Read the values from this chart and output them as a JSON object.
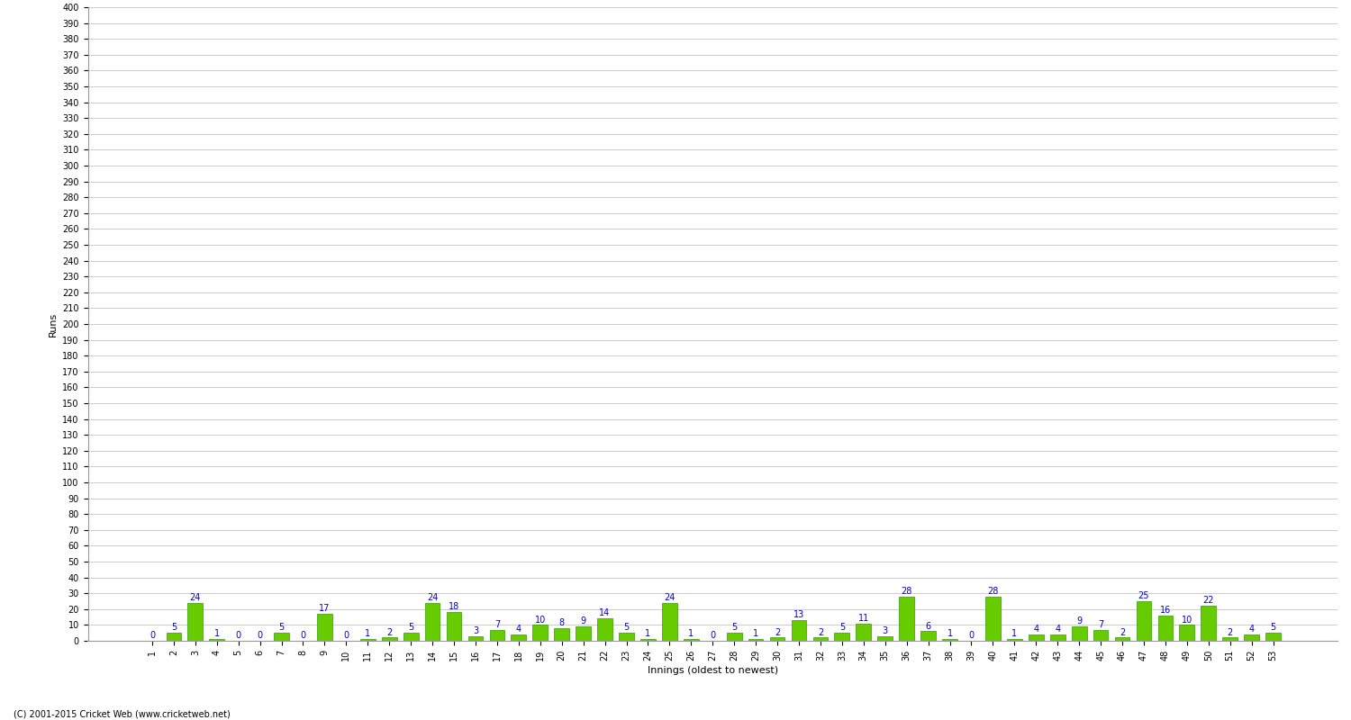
{
  "xlabel": "Innings (oldest to newest)",
  "ylabel": "Runs",
  "values": [
    0,
    5,
    24,
    1,
    0,
    0,
    5,
    0,
    17,
    0,
    1,
    2,
    5,
    24,
    18,
    3,
    7,
    4,
    10,
    8,
    9,
    14,
    5,
    1,
    24,
    1,
    0,
    5,
    1,
    2,
    13,
    2,
    5,
    11,
    3,
    28,
    6,
    1,
    0,
    28,
    1,
    4,
    4,
    9,
    7,
    2,
    25,
    16,
    10,
    22,
    2,
    4,
    5
  ],
  "x_labels": [
    "1",
    "2",
    "3",
    "4",
    "5",
    "6",
    "7",
    "8",
    "9",
    "10",
    "11",
    "12",
    "13",
    "14",
    "15",
    "16",
    "17",
    "18",
    "19",
    "20",
    "21",
    "22",
    "23",
    "24",
    "25",
    "26",
    "27",
    "28",
    "29",
    "30",
    "31",
    "32",
    "33",
    "34",
    "35",
    "36",
    "37",
    "38",
    "39",
    "40",
    "41",
    "42",
    "43",
    "44",
    "45",
    "46",
    "47",
    "48",
    "49",
    "50",
    "51",
    "52",
    "53"
  ],
  "bar_color": "#66cc00",
  "bar_edge_color": "#339900",
  "label_color": "#0000cc",
  "background_color": "#ffffff",
  "grid_color": "#cccccc",
  "ylim": [
    0,
    400
  ],
  "yticks": [
    0,
    10,
    20,
    30,
    40,
    50,
    60,
    70,
    80,
    90,
    100,
    110,
    120,
    130,
    140,
    150,
    160,
    170,
    180,
    190,
    200,
    210,
    220,
    230,
    240,
    250,
    260,
    270,
    280,
    290,
    300,
    310,
    320,
    330,
    340,
    350,
    360,
    370,
    380,
    390,
    400
  ],
  "label_fontsize": 7,
  "tick_fontsize": 7,
  "axis_label_fontsize": 8,
  "footer": "(C) 2001-2015 Cricket Web (www.cricketweb.net)"
}
